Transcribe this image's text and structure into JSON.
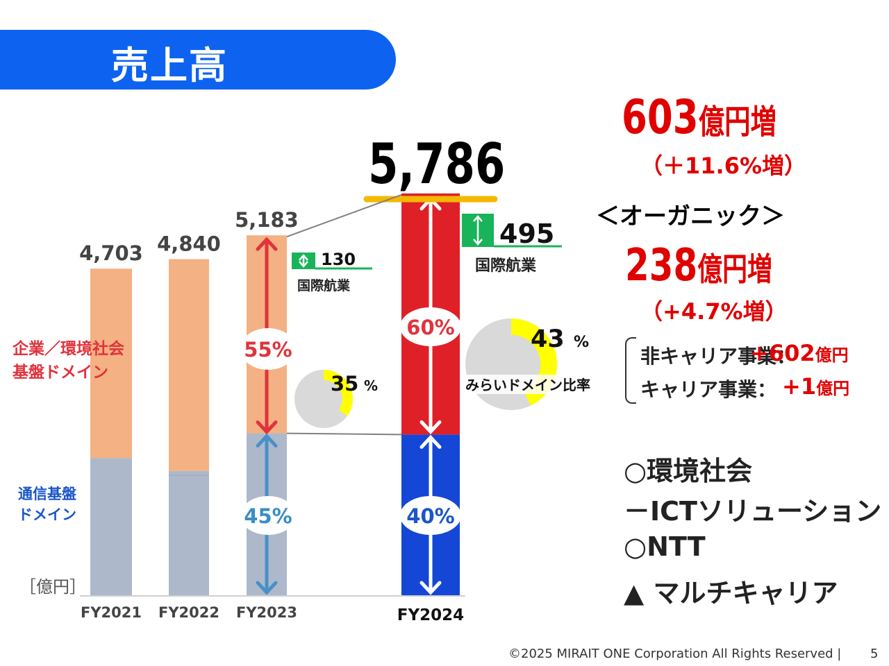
{
  "header": {
    "title": "売上高"
  },
  "chart_data": {
    "type": "bar",
    "title": "",
    "xlabel": "",
    "ylabel": "",
    "unit_label": "［億円］",
    "categories": [
      "FY2021",
      "FY2022",
      "FY2023",
      "FY2024"
    ],
    "totals": [
      4703,
      4840,
      5183,
      5786
    ],
    "total_labels": [
      "4,703",
      "4,840",
      "5,183",
      "5,786"
    ],
    "series": [
      {
        "name": "通信基盤ドメイン",
        "values": [
          1977,
          1790,
          2332,
          2314
        ]
      },
      {
        "name": "企業／環境社会基盤ドメイン",
        "values": [
          2726,
          3050,
          2851,
          3472
        ]
      }
    ],
    "share_labels": {
      "FY2023": {
        "upper": "55%",
        "lower": "45%"
      },
      "FY2024": {
        "upper": "60%",
        "lower": "40%"
      }
    },
    "international_aviation": [
      {
        "year": "FY2023",
        "value": 130,
        "label": "130",
        "caption": "国際航業"
      },
      {
        "year": "FY2024",
        "value": 495,
        "label": "495",
        "caption": "国際航業"
      }
    ],
    "mirai_domain_ratio": [
      {
        "year": "FY2023",
        "percent": 35,
        "label": "35",
        "pct_sign": "%"
      },
      {
        "year": "FY2024",
        "percent": 43,
        "label": "43",
        "pct_sign": "%",
        "caption": "みらいドメイン比率"
      }
    ],
    "colors": {
      "orange": "#f4b183",
      "gray_blue": "#adb9ca",
      "red": "#e02027",
      "blue": "#1447d6",
      "green": "#19b35a",
      "pie_yellow": "#ffff00",
      "pie_gray": "#d9d9d9",
      "gold_line": "#f5b800"
    },
    "ylim": [
      0,
      6000
    ]
  },
  "legend": {
    "red_line1": "企業／環境社会",
    "red_line2": "基盤ドメイン",
    "blue_line1": "通信基盤",
    "blue_line2": "ドメイン"
  },
  "highlights": {
    "increase_value": "603",
    "increase_unit": "億円増",
    "increase_pct": "（＋11.6%増）",
    "organic_label": "＜オーガニック＞",
    "organic_value": "238",
    "organic_unit": "億円増",
    "organic_pct": "（+4.7%増）",
    "breakdown": [
      {
        "label": "非キャリア事業：",
        "value": "+602",
        "unit": "億円"
      },
      {
        "label": "キャリア事業：",
        "value": "+1",
        "unit": "億円"
      }
    ]
  },
  "segments": [
    "○環境社会",
    "－ICTソリューション",
    "○NTT",
    "▲ マルチキャリア"
  ],
  "footer": {
    "copyright": "©2025 MIRAIT ONE Corporation All Rights Reserved |",
    "page": "5"
  }
}
